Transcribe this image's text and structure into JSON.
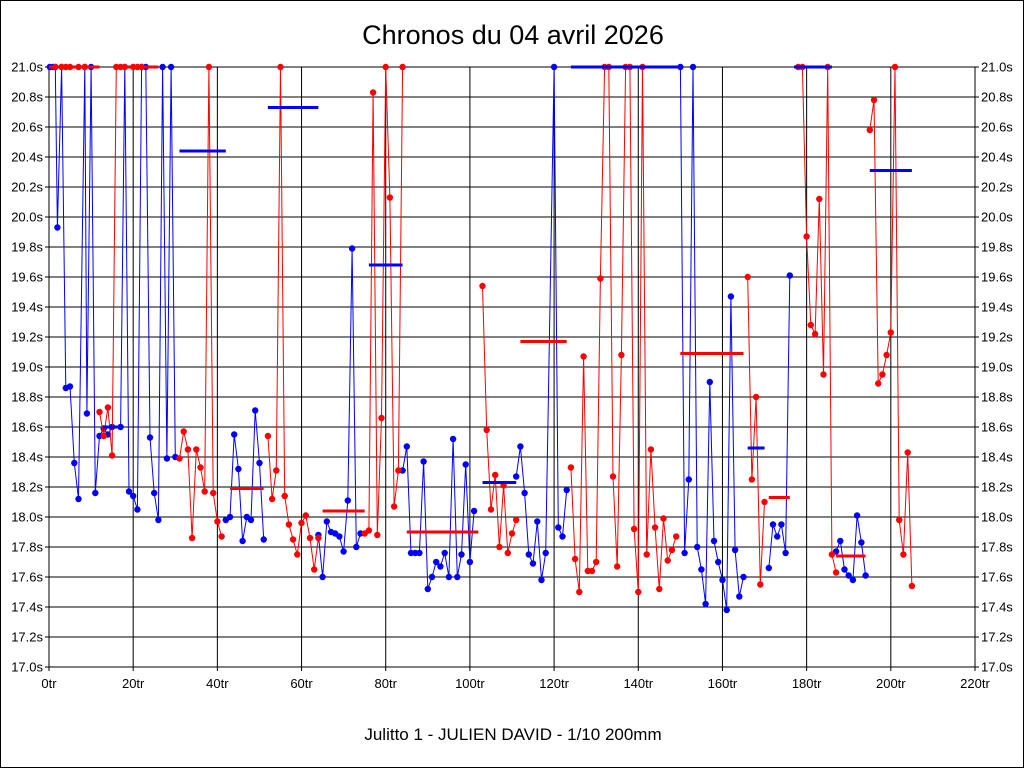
{
  "chart_data": {
    "type": "line",
    "title": "Chronos du 04 avril 2026",
    "xlabel": "Julitto 1 - JULIEN DAVID - 1/10 200mm",
    "ylabel": "",
    "xlim": [
      0,
      220
    ],
    "ylim": [
      17.0,
      21.0
    ],
    "xticks": [
      0,
      20,
      40,
      60,
      80,
      100,
      120,
      140,
      160,
      180,
      200,
      220
    ],
    "xtick_labels": [
      "0tr",
      "20tr",
      "40tr",
      "60tr",
      "80tr",
      "100tr",
      "120tr",
      "140tr",
      "160tr",
      "180tr",
      "200tr",
      "220tr"
    ],
    "yticks": [
      17.0,
      17.2,
      17.4,
      17.6,
      17.8,
      18.0,
      18.2,
      18.4,
      18.6,
      18.8,
      19.0,
      19.2,
      19.4,
      19.6,
      19.8,
      20.0,
      20.2,
      20.4,
      20.6,
      20.8,
      21.0
    ],
    "ytick_labels": [
      "17.0s",
      "17.2s",
      "17.4s",
      "17.6s",
      "17.8s",
      "18.0s",
      "18.2s",
      "18.4s",
      "18.6s",
      "18.8s",
      "19.0s",
      "19.2s",
      "19.4s",
      "19.6s",
      "19.8s",
      "20.0s",
      "20.2s",
      "20.4s",
      "20.6s",
      "20.8s",
      "21.0s"
    ],
    "grid": true,
    "series": [
      {
        "name": "blue",
        "color": "#0000ff",
        "segments": [
          [
            [
              0.2,
              21.0
            ],
            [
              1,
              21.0
            ],
            [
              1.5,
              21.0
            ],
            [
              2,
              19.93
            ],
            [
              3,
              21.0
            ],
            [
              4,
              18.86
            ],
            [
              5,
              18.87
            ],
            [
              6,
              18.36
            ],
            [
              7,
              18.12
            ],
            [
              8.5,
              21.0
            ],
            [
              9,
              18.69
            ],
            [
              10,
              21.0
            ],
            [
              11,
              18.16
            ],
            [
              12,
              18.54
            ],
            [
              13,
              18.59
            ],
            [
              14,
              18.55
            ],
            [
              15,
              18.6
            ],
            [
              17,
              18.6
            ],
            [
              18,
              21.0
            ],
            [
              19,
              18.17
            ],
            [
              20,
              18.14
            ],
            [
              21,
              18.05
            ],
            [
              22,
              21.0
            ],
            [
              23,
              21.0
            ],
            [
              24,
              18.53
            ],
            [
              25,
              18.16
            ],
            [
              26,
              17.98
            ],
            [
              27,
              21.0
            ],
            [
              28,
              18.39
            ],
            [
              29,
              21.0
            ],
            [
              30,
              18.4
            ]
          ],
          [
            [
              42,
              17.98
            ],
            [
              43,
              18.0
            ],
            [
              44,
              18.55
            ],
            [
              45,
              18.32
            ],
            [
              46,
              17.84
            ],
            [
              47,
              18.0
            ],
            [
              48,
              17.98
            ],
            [
              49,
              18.71
            ],
            [
              50,
              18.36
            ],
            [
              51,
              17.85
            ]
          ],
          [
            [
              64,
              17.88
            ],
            [
              65,
              17.6
            ],
            [
              66,
              17.97
            ],
            [
              67,
              17.9
            ],
            [
              68,
              17.89
            ],
            [
              69,
              17.87
            ],
            [
              70,
              17.77
            ],
            [
              71,
              18.11
            ],
            [
              72,
              19.79
            ],
            [
              73,
              17.8
            ],
            [
              74,
              17.89
            ]
          ],
          [
            [
              84,
              18.31
            ],
            [
              85,
              18.47
            ],
            [
              86,
              17.76
            ],
            [
              87,
              17.76
            ],
            [
              88,
              17.76
            ],
            [
              89,
              18.37
            ],
            [
              90,
              17.52
            ],
            [
              91,
              17.6
            ],
            [
              92,
              17.7
            ],
            [
              93,
              17.67
            ],
            [
              94,
              17.76
            ],
            [
              95,
              17.6
            ],
            [
              96,
              18.52
            ],
            [
              97,
              17.6
            ],
            [
              98,
              17.75
            ],
            [
              99,
              18.35
            ],
            [
              100,
              17.7
            ],
            [
              101,
              18.04
            ]
          ],
          [
            [
              111,
              18.27
            ],
            [
              112,
              18.47
            ],
            [
              113,
              18.16
            ],
            [
              114,
              17.75
            ],
            [
              115,
              17.69
            ],
            [
              116,
              17.97
            ],
            [
              117,
              17.58
            ],
            [
              118,
              17.76
            ],
            [
              120,
              21.0
            ],
            [
              121,
              17.93
            ],
            [
              122,
              17.87
            ],
            [
              123,
              18.18
            ]
          ],
          [
            [
              150,
              21.0
            ],
            [
              151,
              17.76
            ],
            [
              152,
              18.25
            ],
            [
              153,
              21.0
            ],
            [
              154,
              17.8
            ],
            [
              155,
              17.65
            ],
            [
              156,
              17.42
            ],
            [
              157,
              18.9
            ],
            [
              158,
              17.84
            ],
            [
              159,
              17.7
            ],
            [
              160,
              17.58
            ],
            [
              161,
              17.38
            ],
            [
              162,
              19.47
            ],
            [
              163,
              17.78
            ],
            [
              164,
              17.47
            ],
            [
              165,
              17.6
            ]
          ],
          [
            [
              171,
              17.66
            ],
            [
              172,
              17.95
            ],
            [
              173,
              17.87
            ],
            [
              174,
              17.95
            ],
            [
              175,
              17.76
            ],
            [
              176,
              19.61
            ]
          ],
          [
            [
              187,
              17.77
            ],
            [
              188,
              17.84
            ],
            [
              189,
              17.65
            ],
            [
              190,
              17.61
            ],
            [
              191,
              17.58
            ],
            [
              192,
              18.01
            ],
            [
              193,
              17.83
            ],
            [
              194,
              17.61
            ]
          ]
        ]
      },
      {
        "name": "red",
        "color": "#ff0000",
        "segments": [
          [
            [
              1.5,
              21.0
            ],
            [
              3,
              21.0
            ],
            [
              4,
              21.0
            ],
            [
              5,
              21.0
            ],
            [
              7,
              21.0
            ],
            [
              8.5,
              21.0
            ]
          ],
          [
            [
              12,
              18.7
            ],
            [
              13,
              18.54
            ],
            [
              14,
              18.73
            ],
            [
              15,
              18.41
            ],
            [
              16,
              21.0
            ],
            [
              17,
              21.0
            ],
            [
              18,
              21.0
            ],
            [
              20,
              21.0
            ],
            [
              21,
              21.0
            ],
            [
              22,
              21.0
            ]
          ],
          [
            [
              31,
              18.39
            ],
            [
              32,
              18.57
            ],
            [
              33,
              18.45
            ],
            [
              34,
              17.86
            ],
            [
              35,
              18.45
            ],
            [
              36,
              18.33
            ],
            [
              37,
              18.17
            ],
            [
              38,
              21.0
            ],
            [
              39,
              18.16
            ],
            [
              40,
              17.97
            ],
            [
              41,
              17.87
            ]
          ],
          [
            [
              52,
              18.54
            ],
            [
              53,
              18.12
            ],
            [
              54,
              18.31
            ],
            [
              55,
              21.0
            ],
            [
              56,
              18.14
            ],
            [
              57,
              17.95
            ],
            [
              58,
              17.85
            ],
            [
              59,
              17.75
            ],
            [
              60,
              17.96
            ],
            [
              61,
              18.01
            ],
            [
              62,
              17.86
            ],
            [
              63,
              17.65
            ],
            [
              64,
              17.86
            ]
          ],
          [
            [
              75,
              17.89
            ],
            [
              76,
              17.91
            ],
            [
              77,
              20.83
            ],
            [
              78,
              17.88
            ],
            [
              79,
              18.66
            ],
            [
              80,
              21.0
            ],
            [
              81,
              20.13
            ],
            [
              82,
              18.07
            ],
            [
              83,
              18.31
            ],
            [
              84,
              21.0
            ]
          ],
          [
            [
              103,
              19.54
            ],
            [
              104,
              18.58
            ],
            [
              105,
              18.05
            ],
            [
              106,
              18.28
            ],
            [
              107,
              17.8
            ],
            [
              108,
              18.21
            ],
            [
              109,
              17.76
            ],
            [
              110,
              17.89
            ],
            [
              111,
              17.98
            ]
          ],
          [
            [
              124,
              18.33
            ],
            [
              125,
              17.72
            ],
            [
              126,
              17.5
            ],
            [
              127,
              19.07
            ],
            [
              128,
              17.64
            ],
            [
              129,
              17.64
            ],
            [
              130,
              17.7
            ],
            [
              131,
              19.59
            ],
            [
              132,
              21.0
            ],
            [
              133,
              21.0
            ],
            [
              134,
              18.27
            ],
            [
              135,
              17.67
            ],
            [
              136,
              19.08
            ],
            [
              137,
              21.0
            ],
            [
              138,
              21.0
            ],
            [
              139,
              17.92
            ],
            [
              140,
              17.5
            ],
            [
              141,
              21.0
            ],
            [
              142,
              17.75
            ],
            [
              143,
              18.45
            ],
            [
              144,
              17.93
            ],
            [
              145,
              17.52
            ],
            [
              146,
              17.99
            ],
            [
              147,
              17.71
            ],
            [
              148,
              17.78
            ],
            [
              149,
              17.87
            ]
          ],
          [
            [
              166,
              19.6
            ],
            [
              167,
              18.25
            ],
            [
              168,
              18.8
            ],
            [
              169,
              17.55
            ],
            [
              170,
              18.1
            ]
          ],
          [
            [
              178,
              21.0
            ],
            [
              179,
              21.0
            ],
            [
              180,
              19.87
            ],
            [
              181,
              19.28
            ],
            [
              182,
              19.22
            ],
            [
              183,
              20.12
            ],
            [
              184,
              18.95
            ],
            [
              185,
              21.0
            ],
            [
              186,
              17.75
            ],
            [
              187,
              17.63
            ]
          ],
          [
            [
              195,
              20.58
            ],
            [
              196,
              20.78
            ],
            [
              197,
              18.89
            ],
            [
              198,
              18.95
            ],
            [
              199,
              19.08
            ],
            [
              200,
              19.23
            ],
            [
              201,
              21.0
            ],
            [
              202,
              17.98
            ],
            [
              203,
              17.75
            ],
            [
              204,
              18.43
            ],
            [
              205,
              17.54
            ]
          ]
        ]
      }
    ],
    "average_bars": [
      {
        "color": "#0000ff",
        "x0": 13,
        "x1": 17,
        "y": 18.6
      },
      {
        "color": "#0000ff",
        "x0": 31,
        "x1": 42,
        "y": 20.44
      },
      {
        "color": "#0000ff",
        "x0": 52,
        "x1": 64,
        "y": 20.73
      },
      {
        "color": "#0000ff",
        "x0": 76,
        "x1": 84,
        "y": 19.68
      },
      {
        "color": "#0000ff",
        "x0": 103,
        "x1": 111,
        "y": 18.23
      },
      {
        "color": "#0000ff",
        "x0": 124,
        "x1": 150,
        "y": 21.0
      },
      {
        "color": "#0000ff",
        "x0": 166,
        "x1": 170,
        "y": 18.46
      },
      {
        "color": "#0000ff",
        "x0": 177,
        "x1": 186,
        "y": 21.0
      },
      {
        "color": "#0000ff",
        "x0": 195,
        "x1": 205,
        "y": 20.31
      },
      {
        "color": "#ff0000",
        "x0": 0,
        "x1": 12,
        "y": 21.0
      },
      {
        "color": "#ff0000",
        "x0": 18,
        "x1": 26,
        "y": 21.0
      },
      {
        "color": "#ff0000",
        "x0": 43,
        "x1": 51,
        "y": 18.19
      },
      {
        "color": "#ff0000",
        "x0": 65,
        "x1": 75,
        "y": 18.04
      },
      {
        "color": "#ff0000",
        "x0": 85,
        "x1": 102,
        "y": 17.9
      },
      {
        "color": "#ff0000",
        "x0": 112,
        "x1": 123,
        "y": 19.17
      },
      {
        "color": "#ff0000",
        "x0": 150,
        "x1": 165,
        "y": 19.09
      },
      {
        "color": "#ff0000",
        "x0": 171,
        "x1": 176,
        "y": 18.13
      },
      {
        "color": "#ff0000",
        "x0": 187,
        "x1": 194,
        "y": 17.74
      }
    ]
  }
}
